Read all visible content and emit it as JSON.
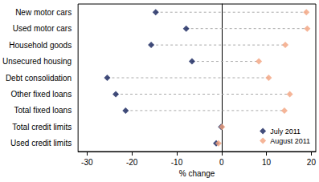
{
  "chart_data": {
    "type": "dot",
    "orientation": "horizontal",
    "x_label": "% change",
    "categories": [
      "New motor cars",
      "Used motor cars",
      "Household goods",
      "Unsecured housing",
      "Debt consolidation",
      "Other fixed loans",
      "Total fixed loans",
      "Total credit limits",
      "Used credit limits"
    ],
    "series": [
      {
        "name": "July 2011",
        "color": "#13205a",
        "marker": "diamond",
        "values": [
          -14.7,
          -7.9,
          -15.7,
          -6.6,
          -25.5,
          -23.6,
          -21.4,
          -0.1,
          -1.2
        ]
      },
      {
        "name": "August 2011",
        "color": "#f2a27e",
        "marker": "diamond",
        "values": [
          18.9,
          19.1,
          14.2,
          8.3,
          10.5,
          15.2,
          14.0,
          0.1,
          -0.7
        ]
      }
    ],
    "xlim": [
      -32,
      21
    ],
    "xticks": [
      -30,
      -20,
      -10,
      0,
      10,
      20
    ],
    "grid": false,
    "legend": "bottom-right",
    "line_style": "dashed"
  }
}
